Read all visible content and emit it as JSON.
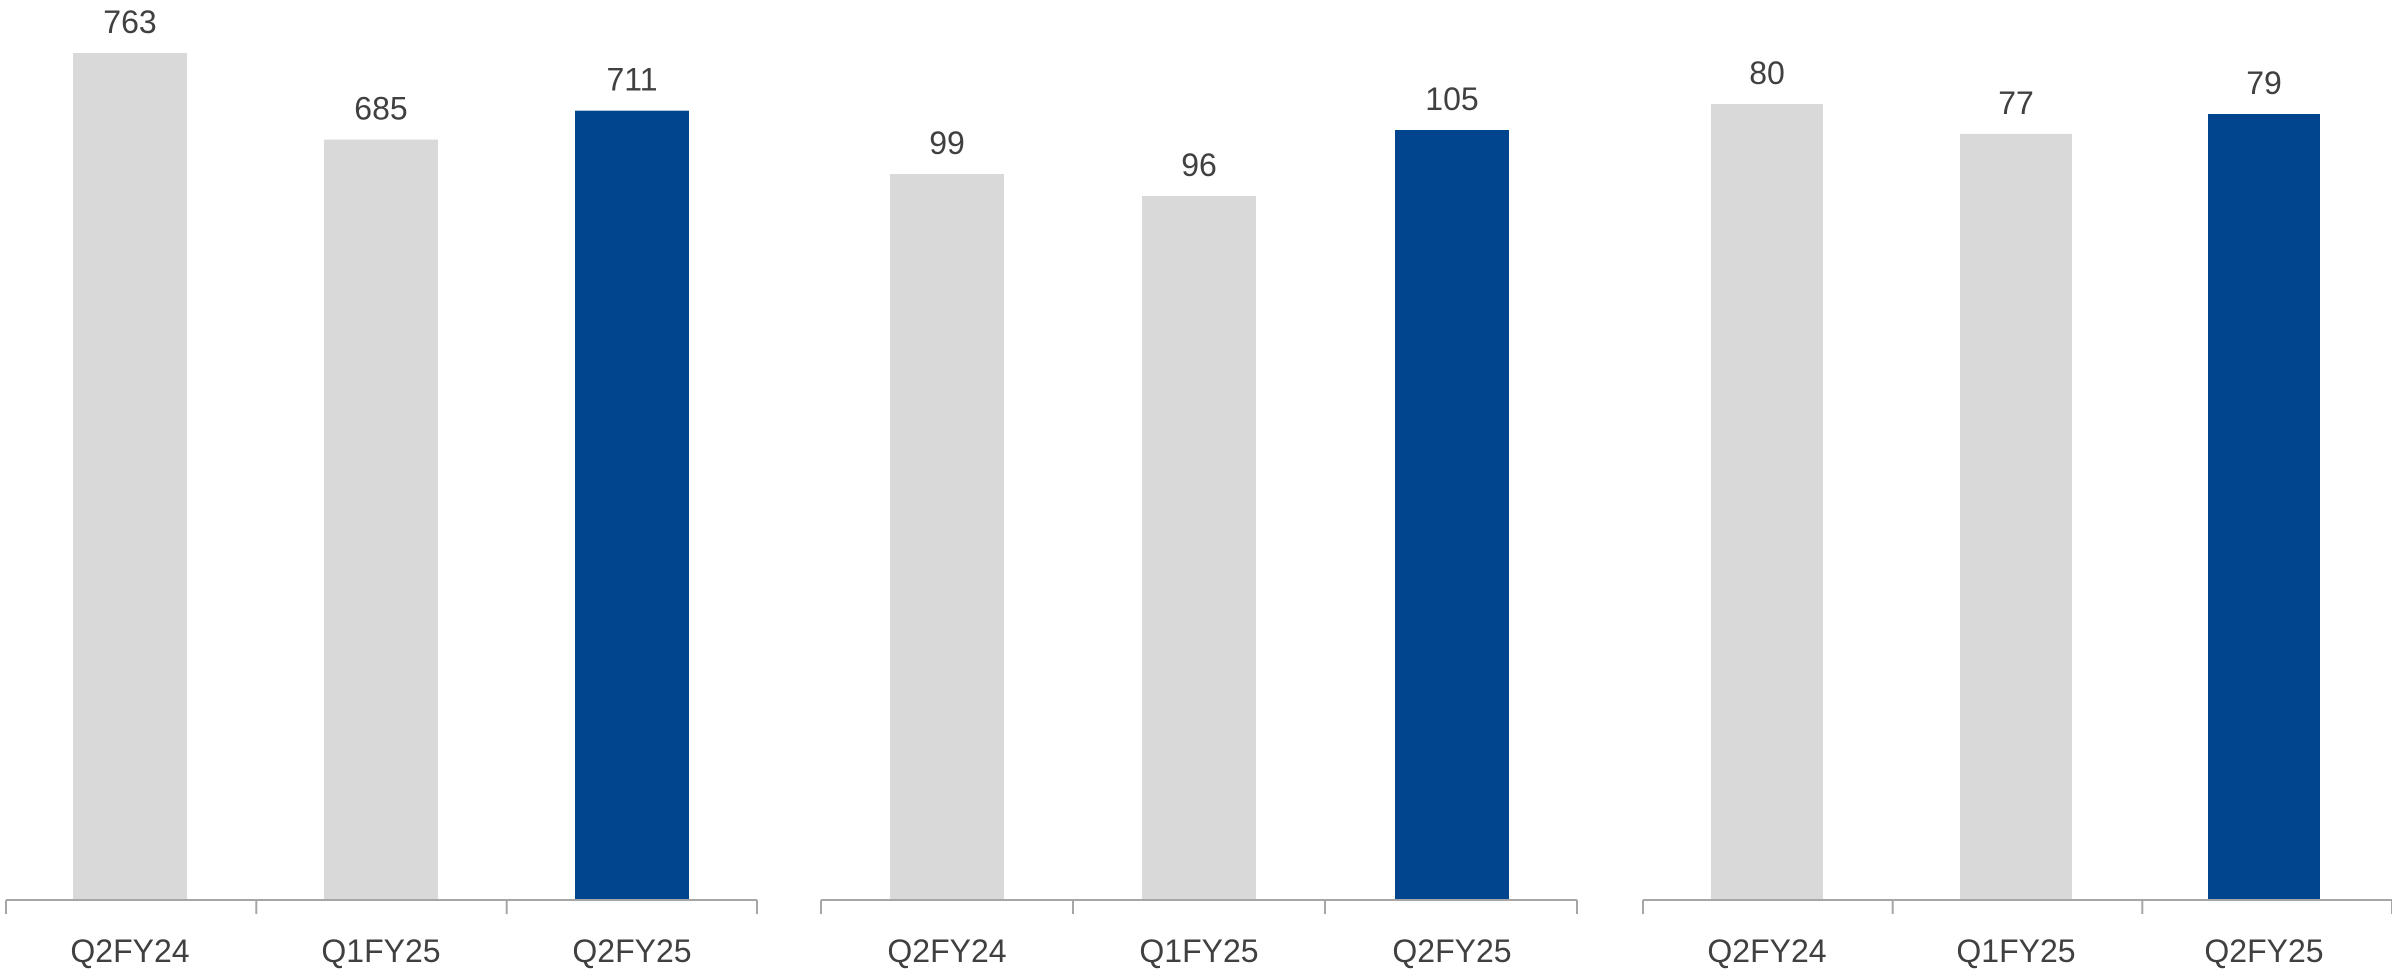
{
  "chart_data": [
    {
      "type": "bar",
      "categories": [
        "Q2FY24",
        "Q1FY25",
        "Q2FY25"
      ],
      "values": [
        763,
        685,
        711
      ],
      "highlight_index": 2,
      "title": "",
      "xlabel": "",
      "ylabel": ""
    },
    {
      "type": "bar",
      "categories": [
        "Q2FY24",
        "Q1FY25",
        "Q2FY25"
      ],
      "values": [
        99,
        96,
        105
      ],
      "highlight_index": 2,
      "title": "",
      "xlabel": "",
      "ylabel": ""
    },
    {
      "type": "bar",
      "categories": [
        "Q2FY24",
        "Q1FY25",
        "Q2FY25"
      ],
      "values": [
        80,
        77,
        79
      ],
      "highlight_index": 2,
      "title": "",
      "xlabel": "",
      "ylabel": ""
    }
  ],
  "colors": {
    "bar_default": "#d9d9d9",
    "bar_highlight": "#00458e",
    "axis": "#a6a6a6",
    "text": "#404040"
  }
}
